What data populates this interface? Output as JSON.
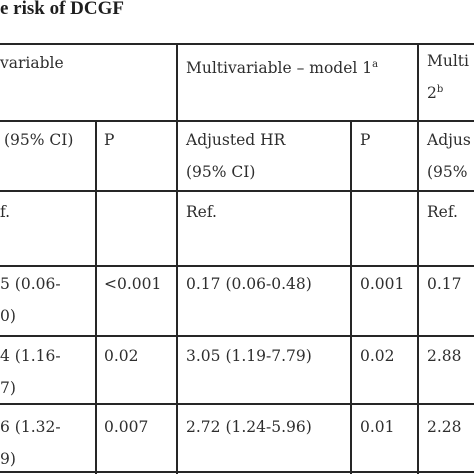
{
  "title": "e risk of DCGF",
  "header": {
    "group_univariable": "variable",
    "group_model1": "Multivariable – model 1",
    "group_model1_sup": "a",
    "group_model2_l1": "Multi",
    "group_model2_l2": "2",
    "group_model2_sup": "b",
    "col_uni_hr": "(95% CI)",
    "col_uni_p": "P",
    "col_m1_hr_l1": "Adjusted HR",
    "col_m1_hr_l2": "(95% CI)",
    "col_m1_p": "P",
    "col_m2_hr_l1": "Adjus",
    "col_m2_hr_l2": "(95%"
  },
  "rows": [
    {
      "uni_hr_l1": "f.",
      "uni_hr_l2": "",
      "uni_p": "",
      "m1_hr": "Ref.",
      "m1_p": "",
      "m2_hr": "Ref."
    },
    {
      "uni_hr_l1": "5 (0.06-",
      "uni_hr_l2": "0)",
      "uni_p": "<0.001",
      "m1_hr": "0.17 (0.06-0.48)",
      "m1_p": "0.001",
      "m2_hr": "0.17"
    },
    {
      "uni_hr_l1": "4 (1.16-",
      "uni_hr_l2": "7)",
      "uni_p": "0.02",
      "m1_hr": "3.05 (1.19-7.79)",
      "m1_p": "0.02",
      "m2_hr": "2.88"
    },
    {
      "uni_hr_l1": "6 (1.32-",
      "uni_hr_l2": "9)",
      "uni_p": "0.007",
      "m1_hr": "2.72 (1.24-5.96)",
      "m1_p": "0.01",
      "m2_hr": "2.28"
    }
  ]
}
